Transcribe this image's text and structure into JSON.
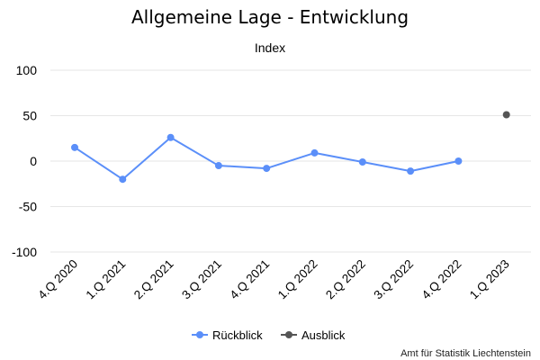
{
  "chart_data": {
    "type": "line",
    "title": "Allgemeine Lage - Entwicklung",
    "subtitle": "Index",
    "categories": [
      "4.Q 2020",
      "1.Q 2021",
      "2.Q 2021",
      "3.Q 2021",
      "4.Q 2021",
      "1.Q 2022",
      "2.Q 2022",
      "3.Q 2022",
      "4.Q 2022",
      "1.Q 2023"
    ],
    "ylim": [
      -100,
      100
    ],
    "yticks": [
      100,
      50,
      0,
      -50,
      -100
    ],
    "grid": true,
    "legend_position": "bottom",
    "series": [
      {
        "name": "Rückblick",
        "color": "#5b8ff9",
        "values": [
          15,
          -20,
          26,
          -5,
          -8,
          9,
          -1,
          -11,
          0,
          null
        ]
      },
      {
        "name": "Ausblick",
        "color": "#555555",
        "values": [
          null,
          null,
          null,
          null,
          null,
          null,
          null,
          null,
          null,
          51
        ]
      }
    ]
  },
  "credit": "Amt für Statistik Liechtenstein"
}
